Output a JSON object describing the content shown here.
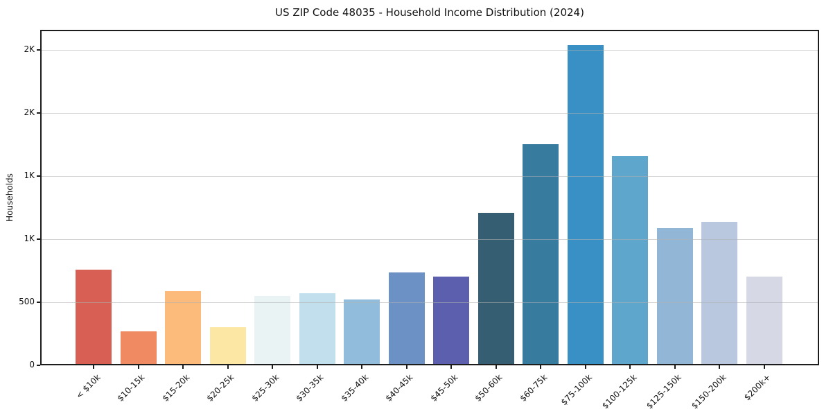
{
  "chart_data": {
    "type": "bar",
    "title": "US ZIP Code 48035 - Household Income Distribution (2024)",
    "xlabel": "",
    "ylabel": "Households",
    "ylim": [
      0,
      2660
    ],
    "grid": "horizontal",
    "grid_above_bars": true,
    "legend": "none",
    "categories": [
      "< $10k",
      "$10-15k",
      "$15-20k",
      "$20-25k",
      "$25-30k",
      "$30-35k",
      "$35-40k",
      "$40-45k",
      "$45-50k",
      "$50-60k",
      "$60-75k",
      "$75-100k",
      "$100-125k",
      "$125-150k",
      "$150-200k",
      "$200k+"
    ],
    "values": [
      750,
      260,
      575,
      290,
      540,
      560,
      510,
      725,
      695,
      1200,
      1740,
      2530,
      1650,
      1080,
      1125,
      695
    ],
    "bar_colors": [
      "#d85f53",
      "#f08a62",
      "#fcba7b",
      "#fde7a4",
      "#e9f3f3",
      "#c1dfec",
      "#92bcdb",
      "#6b91c5",
      "#5b5fae",
      "#365e72",
      "#377b9f",
      "#3890c4",
      "#5ea6cb",
      "#92b6d5",
      "#b9c7df",
      "#d6d8e5"
    ],
    "y_ticks": [
      {
        "value": 0,
        "label": "0"
      },
      {
        "value": 500,
        "label": "500"
      },
      {
        "value": 1000,
        "label": "1K"
      },
      {
        "value": 1500,
        "label": "1K"
      },
      {
        "value": 2000,
        "label": "2K"
      },
      {
        "value": 2500,
        "label": "2K"
      }
    ]
  }
}
